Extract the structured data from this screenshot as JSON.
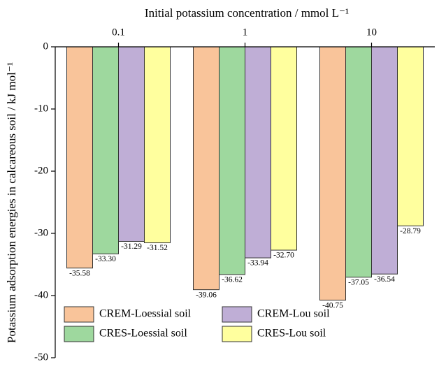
{
  "chart_data": {
    "type": "bar",
    "x_label": "Initial potassium concentration / mmol L⁻¹",
    "y_label": "Potassium adsorption energies in calcareous soil / kJ mol⁻¹",
    "categories": [
      "0.1",
      "1",
      "10"
    ],
    "series": [
      {
        "name": "CREM-Loessial soil",
        "color": "#f9c49a",
        "values": [
          -35.58,
          -39.06,
          -40.75
        ],
        "value_labels": [
          "-35.58",
          "-39.06",
          "-40.75"
        ]
      },
      {
        "name": "CRES-Loessial soil",
        "color": "#9ed89e",
        "values": [
          -33.3,
          -36.62,
          -37.05
        ],
        "value_labels": [
          "-33.30",
          "-36.62",
          "-37.05"
        ]
      },
      {
        "name": "CREM-Lou soil",
        "color": "#bfaed6",
        "values": [
          -31.29,
          -33.94,
          -36.54
        ],
        "value_labels": [
          "-31.29",
          "-33.94",
          "-36.54"
        ]
      },
      {
        "name": "CRES-Lou soil",
        "color": "#ffff9e",
        "values": [
          -31.52,
          -32.7,
          -28.79
        ],
        "value_labels": [
          "-31.52",
          "-32.70",
          "-28.79"
        ]
      }
    ],
    "ylim": [
      -50,
      0
    ],
    "yticks": [
      0,
      -10,
      -20,
      -30,
      -40,
      -50
    ],
    "legend": "lower left"
  }
}
